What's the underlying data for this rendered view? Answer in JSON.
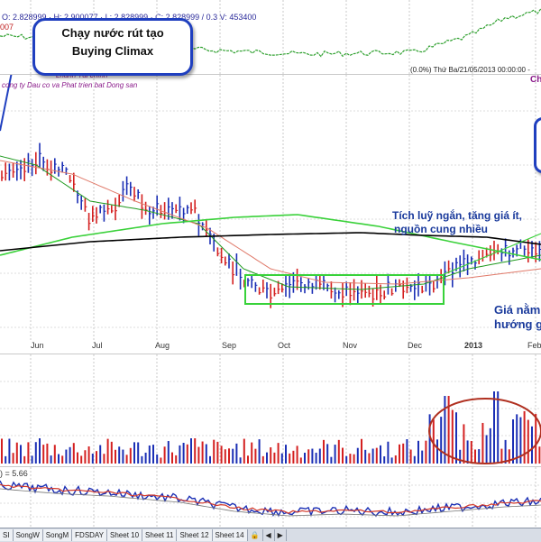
{
  "top_strip": {
    "ohlc_label": "O: 2.828999 · H: 2.900077 · L: 2.828999 · C: 2.828999 / 0.3 V: 453400",
    "edge_label": "007"
  },
  "main": {
    "left_label_1": "Lnành          Tài chính",
    "left_label_2": "cong ty Dau co va Phat trien bat Dong san",
    "info_line": "(0.0%) Thứ Ba/21/05/2013 00:00:00 -",
    "right_edge_label": "Ch"
  },
  "callout_climax": {
    "line1": "Chạy nước rút tạo",
    "line2": "Buying Climax"
  },
  "note_accumulation": {
    "line1": "Tích luỹ ngắn, tăng giá ít,",
    "line2": "nguồn cung nhiều"
  },
  "note_price": {
    "line1": "Giá nằm",
    "line2": "hướng g"
  },
  "date_axis": [
    "Jun",
    "Jul",
    "Aug",
    "Sep",
    "Oct",
    "Nov",
    "Dec",
    "2013",
    "Feb"
  ],
  "indicator_label": ") = 5.66",
  "sheet_tabs": [
    "SI",
    "SongW",
    "SongM",
    "FDSDAY",
    "Sheet 10",
    "Sheet 11",
    "Sheet 12",
    "Sheet 14"
  ],
  "colors": {
    "up_bar": "#1b2fb5",
    "down_bar": "#d42020",
    "ma_short": "#1f9a1f",
    "ma_long": "#000000",
    "ma_mid": "#e07a6a",
    "box": "#38d23a",
    "circle": "#b03020"
  }
}
